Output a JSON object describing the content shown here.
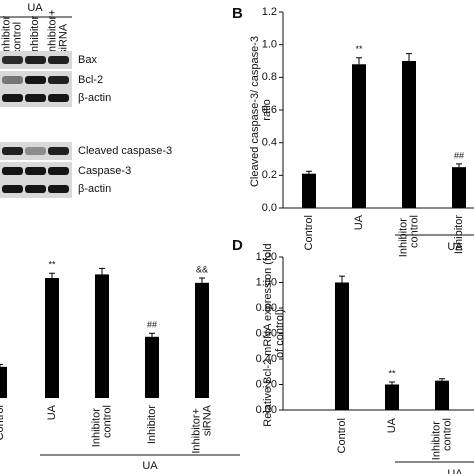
{
  "panel_a": {
    "group": "UA",
    "lanes": [
      "Inhibitor control",
      "Inhibitor",
      "Inhibitor+ siRNA"
    ],
    "bands": [
      "Bax",
      "Bcl-2",
      "β-actin",
      "Cleaved caspase-3",
      "Caspase-3",
      "β-actin"
    ]
  },
  "chart_data": [
    {
      "type": "bar",
      "panel": "B",
      "ylabel": "Cleaved caspase-3/ caspase-3 ratio",
      "categories": [
        "Control",
        "UA",
        "Inhibitor control",
        "Inhibitor"
      ],
      "values": [
        0.21,
        0.88,
        0.9,
        0.25
      ],
      "errors": [
        0.015,
        0.04,
        0.045,
        0.02
      ],
      "annotations": [
        null,
        "**",
        null,
        "##"
      ],
      "group_label": "UA",
      "color": "#000000",
      "ylim": [
        0,
        1.2
      ],
      "yticks": [
        {
          "value": 0,
          "label": "0.0"
        },
        0.2,
        0.4,
        0.6,
        0.8,
        {
          "value": 1,
          "label": "1.0"
        },
        1.2
      ]
    },
    {
      "type": "bar",
      "categories": [
        "Control",
        "UA",
        "Inhibitor control",
        "Inhibitor",
        "Inhibitor+ siRNA"
      ],
      "values": [
        0.26,
        1.0,
        1.03,
        0.51,
        0.96
      ],
      "errors": [
        0.02,
        0.04,
        0.05,
        0.03,
        0.04
      ],
      "annotations": [
        null,
        "**",
        null,
        "##",
        "&&"
      ],
      "group_label": "UA",
      "color": "#000000",
      "ylim": [
        0,
        1.2
      ]
    },
    {
      "type": "bar",
      "panel": "D",
      "ylabel": "Relative Bcl-2 mRNA expression (fold of control)",
      "categories": [
        "Control",
        "UA",
        "Inhibitor control"
      ],
      "values": [
        1.0,
        0.2,
        0.23
      ],
      "errors": [
        0.05,
        0.02,
        0.015
      ],
      "annotations": [
        null,
        "**",
        null
      ],
      "group_label": "UA",
      "color": "#000000",
      "ylim": [
        0,
        1.2
      ],
      "yticks": [
        {
          "value": 0,
          "label": "0.00"
        },
        {
          "value": 0.2,
          "label": "0.20"
        },
        {
          "value": 0.4,
          "label": "0.40"
        },
        {
          "value": 0.6,
          "label": "0.60"
        },
        {
          "value": 0.8,
          "label": "0.80"
        },
        {
          "value": 1,
          "label": "1.00"
        },
        {
          "value": 1.2,
          "label": "1.20"
        }
      ]
    }
  ]
}
